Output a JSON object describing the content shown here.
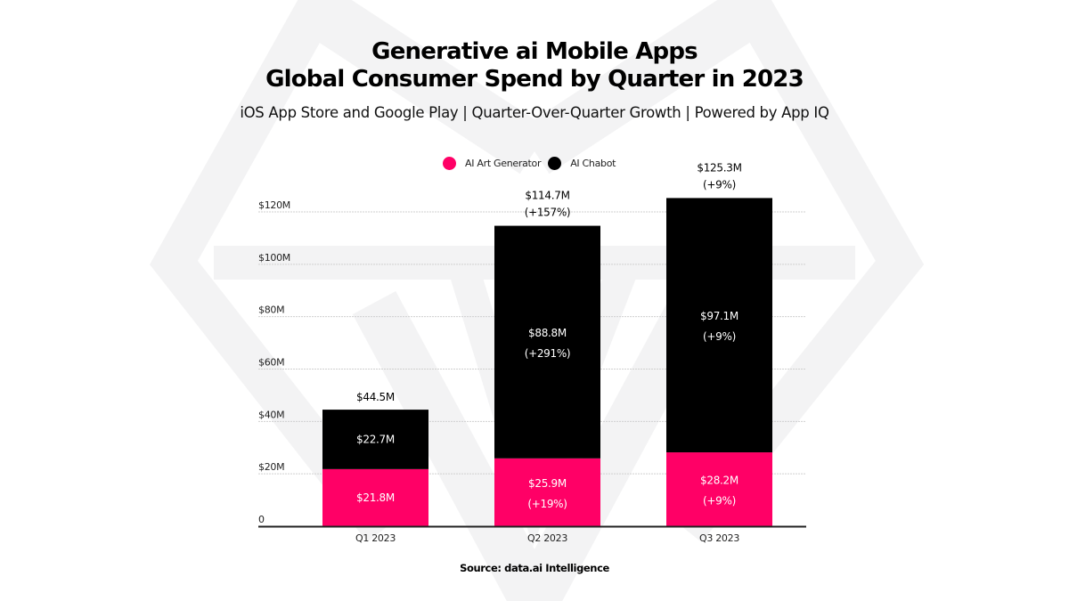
{
  "header": {
    "title_line1": "Generative ai Mobile Apps",
    "title_line2": "Global Consumer Spend by Quarter in 2023",
    "subtitle": "iOS App Store and Google Play | Quarter-Over-Quarter Growth | Powered by App IQ"
  },
  "legend": {
    "items": [
      {
        "label": "AI Art Generator",
        "color": "#FF0066",
        "icon": "circle-swatch-icon"
      },
      {
        "label": "AI Chabot",
        "color": "#000000",
        "icon": "circle-swatch-icon"
      }
    ]
  },
  "footer": {
    "source": "Source: data.ai Intelligence"
  },
  "colors": {
    "art_generator": "#FF0066",
    "chatbot": "#000000",
    "gridline": "#cfcfcf",
    "axis": "#222222",
    "watermark": "#f3f3f4"
  },
  "chart_data": {
    "type": "bar",
    "stacked": true,
    "title": "Generative ai Mobile Apps Global Consumer Spend by Quarter in 2023",
    "subtitle": "iOS App Store and Google Play | Quarter-Over-Quarter Growth | Powered by App IQ",
    "xlabel": "",
    "ylabel": "",
    "categories": [
      "Q1 2023",
      "Q2 2023",
      "Q3 2023"
    ],
    "ylim": [
      0,
      120
    ],
    "yticks": [
      0,
      20,
      40,
      60,
      80,
      100,
      120
    ],
    "ytick_labels": [
      "0",
      "$20M",
      "$40M",
      "$60M",
      "$80M",
      "$100M",
      "$120M"
    ],
    "grid": true,
    "legend_position": "top-center",
    "series": [
      {
        "name": "AI Art Generator",
        "color": "#FF0066",
        "values": [
          21.8,
          25.9,
          28.2
        ],
        "labels": [
          "$21.8M",
          "$25.9M",
          "$28.2M"
        ],
        "growth_labels": [
          "",
          "(+19%)",
          "(+9%)"
        ]
      },
      {
        "name": "AI Chabot",
        "color": "#000000",
        "values": [
          22.7,
          88.8,
          97.1
        ],
        "labels": [
          "$22.7M",
          "$88.8M",
          "$97.1M"
        ],
        "growth_labels": [
          "",
          "(+291%)",
          "(+9%)"
        ]
      }
    ],
    "totals": {
      "values": [
        44.5,
        114.7,
        125.3
      ],
      "labels": [
        "$44.5M",
        "$114.7M",
        "$125.3M"
      ],
      "growth_labels": [
        "",
        "(+157%)",
        "(+9%)"
      ]
    },
    "source": "Source: data.ai Intelligence"
  }
}
